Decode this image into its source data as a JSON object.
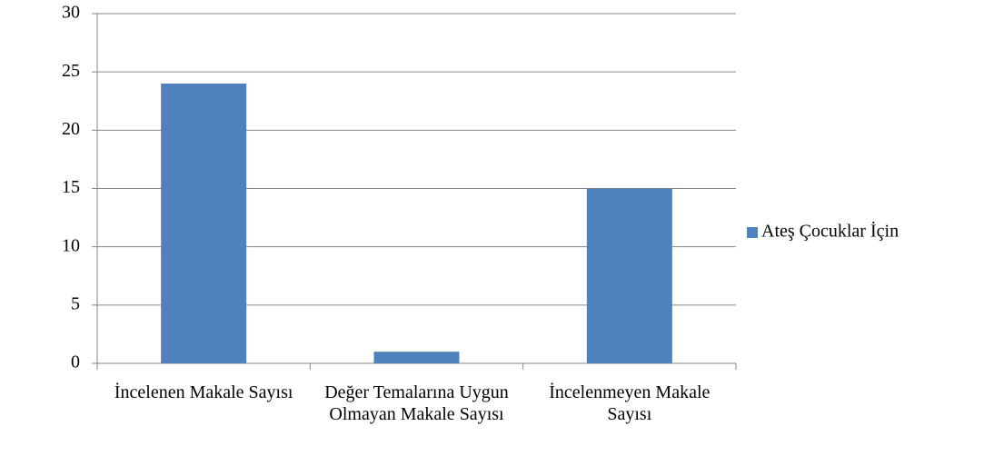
{
  "chart_data": {
    "type": "bar",
    "categories": [
      "İncelenen Makale Sayısı",
      "Değer Temalarına Uygun Olmayan Makale Sayısı",
      "İncelenmeyen Makale Sayısı"
    ],
    "series": [
      {
        "name": "Ateş Çocuklar İçin",
        "color": "#4f81bd",
        "values": [
          24,
          1,
          15
        ]
      }
    ],
    "ylim": [
      0,
      30
    ],
    "yticks": [
      0,
      5,
      10,
      15,
      20,
      25,
      30
    ],
    "grid": true,
    "legend": "right"
  }
}
